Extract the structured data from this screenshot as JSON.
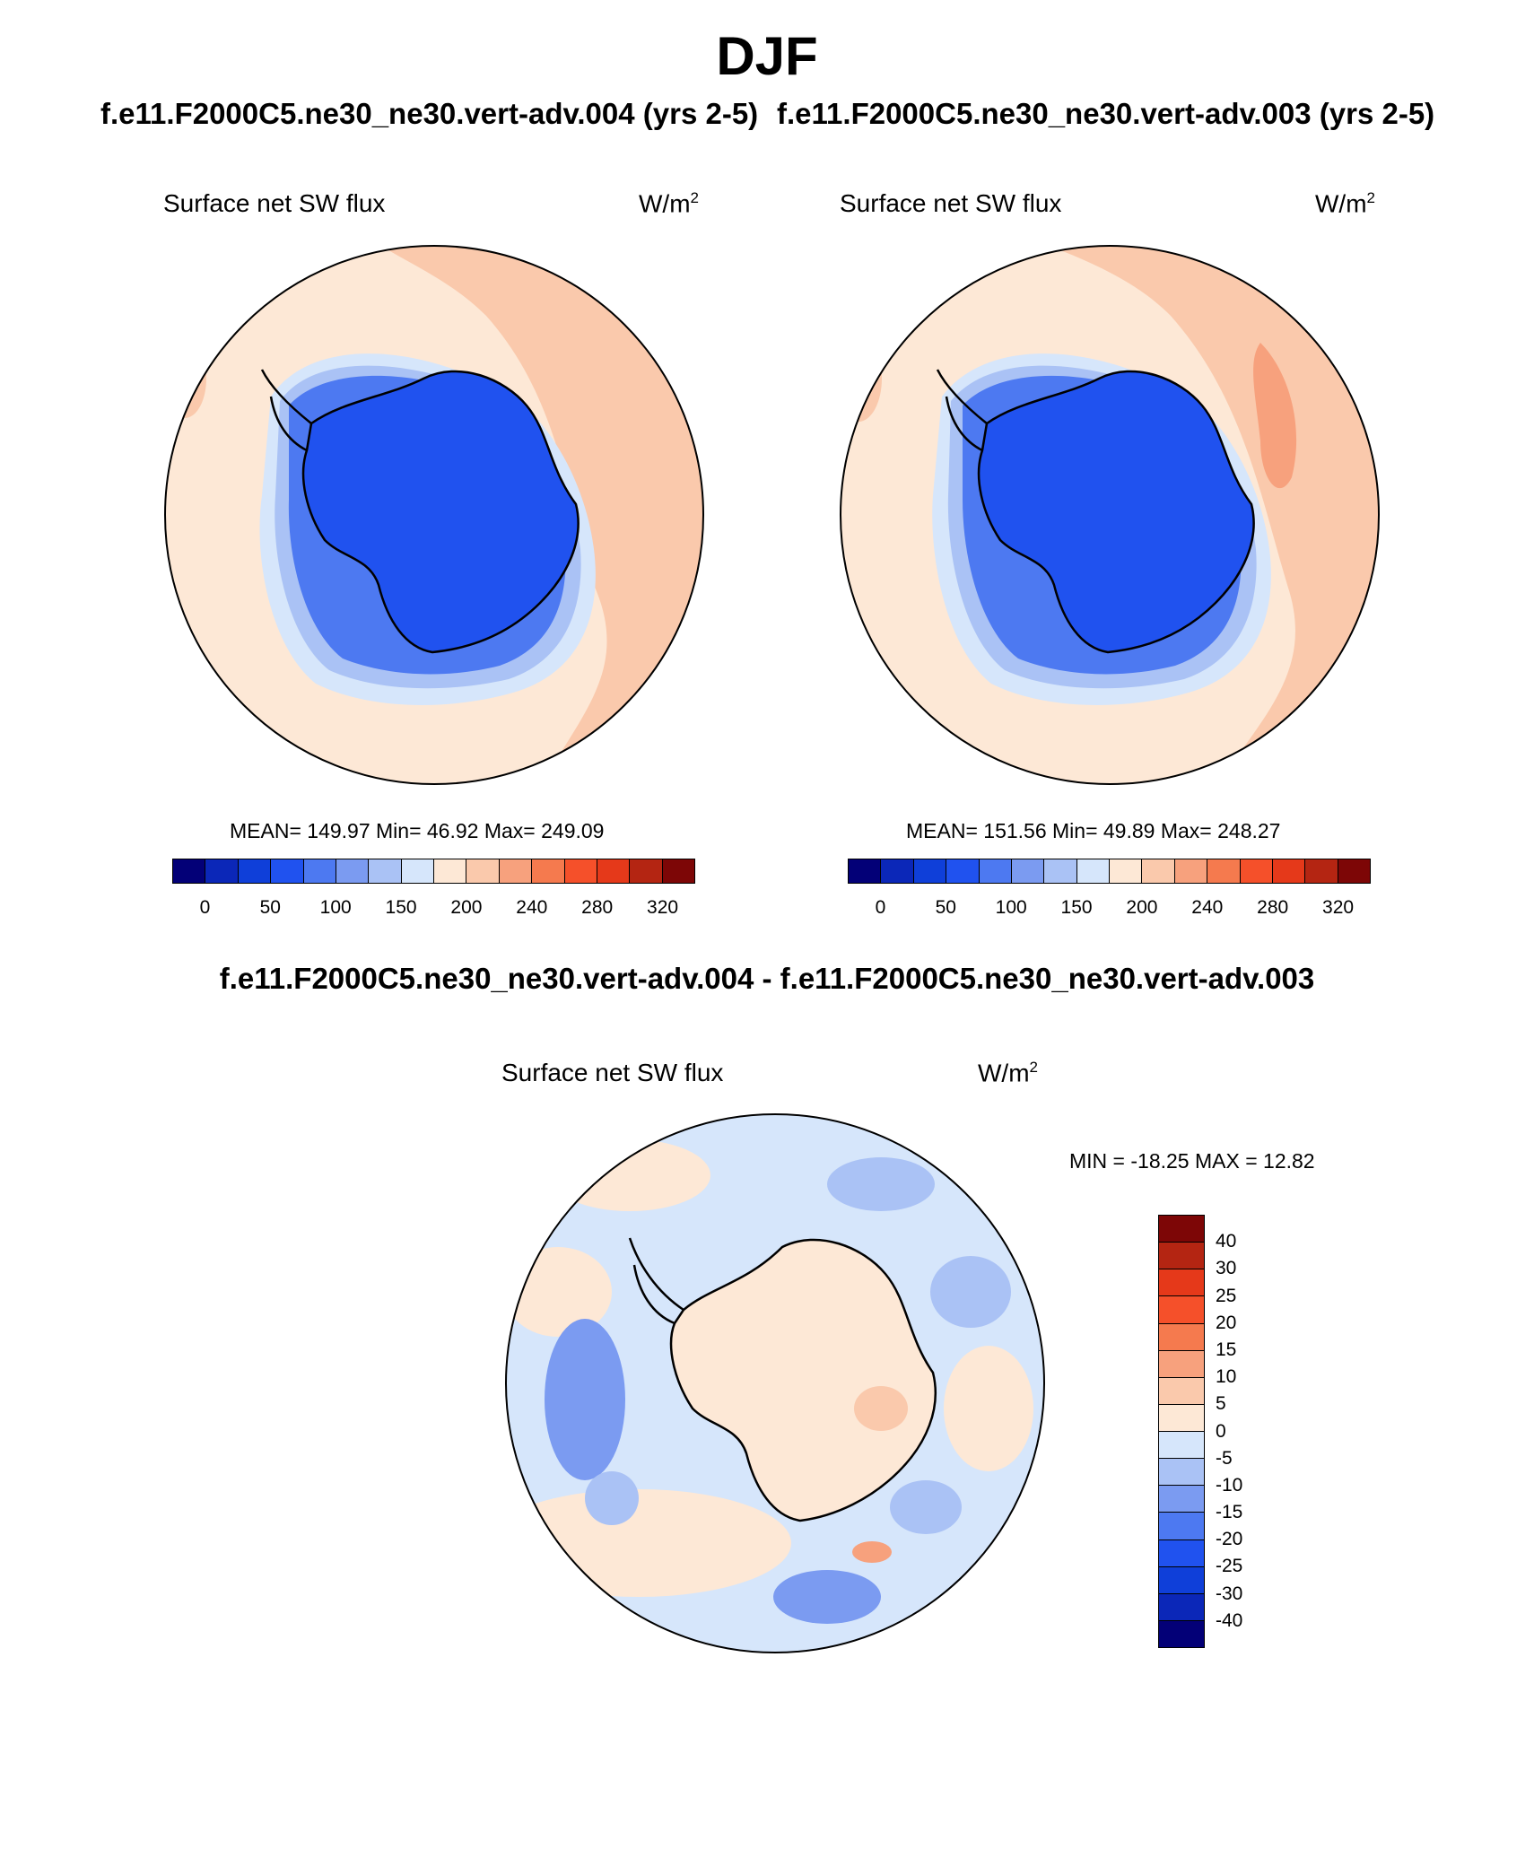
{
  "season": "DJF",
  "panels": {
    "left": {
      "case_title": "f.e11.F2000C5.ne30_ne30.vert-adv.004 (yrs 2-5)",
      "variable": "Surface net SW flux",
      "units_base": "W/m",
      "units_exp": "2",
      "stats": "MEAN= 149.97  Min=  46.92  Max= 249.09"
    },
    "right": {
      "case_title": "f.e11.F2000C5.ne30_ne30.vert-adv.003 (yrs 2-5)",
      "variable": "Surface net SW flux",
      "units_base": "W/m",
      "units_exp": "2",
      "stats": "MEAN= 151.56  Min=  49.89  Max= 248.27"
    },
    "diff": {
      "title": "f.e11.F2000C5.ne30_ne30.vert-adv.004 - f.e11.F2000C5.ne30_ne30.vert-adv.003",
      "variable": "Surface net SW flux",
      "units_base": "W/m",
      "units_exp": "2",
      "stats": "MIN = -18.25 MAX =  12.82"
    }
  },
  "colorbar_main": {
    "colors": [
      "#030077",
      "#0b27b8",
      "#0f3fd9",
      "#2052ef",
      "#4d79f1",
      "#7b9bf1",
      "#aac2f5",
      "#d6e6fb",
      "#fde8d6",
      "#fac9ac",
      "#f7a17d",
      "#f57a4e",
      "#f5502a",
      "#e5391a",
      "#b42512",
      "#7d0606"
    ],
    "labels": [
      "0",
      "50",
      "100",
      "150",
      "200",
      "240",
      "280",
      "320"
    ]
  },
  "colorbar_diff": {
    "colors": [
      "#7d0606",
      "#b42512",
      "#e5391a",
      "#f5502a",
      "#f57a4e",
      "#f7a17d",
      "#fac9ac",
      "#fde8d6",
      "#d6e6fb",
      "#aac2f5",
      "#7b9bf1",
      "#4d79f1",
      "#2052ef",
      "#0f3fd9",
      "#0b27b8",
      "#030077"
    ],
    "labels": [
      "40",
      "30",
      "25",
      "20",
      "15",
      "10",
      "5",
      "0",
      "-5",
      "-10",
      "-15",
      "-20",
      "-25",
      "-30",
      "-40"
    ]
  }
}
